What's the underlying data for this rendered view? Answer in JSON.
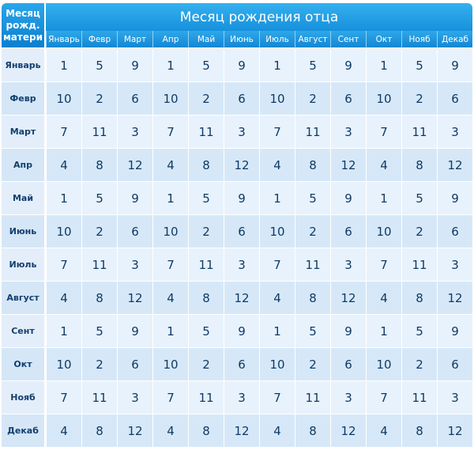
{
  "table": {
    "corner_label": [
      "Месяц",
      "рожд.",
      "матери"
    ],
    "title": "Месяц рождения отца",
    "columns": [
      "Январь",
      "Февр",
      "Март",
      "Апр",
      "Май",
      "Июнь",
      "Июль",
      "Август",
      "Сент",
      "Окт",
      "Нояб",
      "Декаб"
    ],
    "rows": [
      {
        "label": "Январь",
        "values": [
          "1",
          "5",
          "9",
          "1",
          "5",
          "9",
          "1",
          "5",
          "9",
          "1",
          "5",
          "9"
        ]
      },
      {
        "label": "Февр",
        "values": [
          "10",
          "2",
          "6",
          "10",
          "2",
          "6",
          "10",
          "2",
          "6",
          "10",
          "2",
          "6"
        ]
      },
      {
        "label": "Март",
        "values": [
          "7",
          "11",
          "3",
          "7",
          "11",
          "3",
          "7",
          "11",
          "3",
          "7",
          "11",
          "3"
        ]
      },
      {
        "label": "Апр",
        "values": [
          "4",
          "8",
          "12",
          "4",
          "8",
          "12",
          "4",
          "8",
          "12",
          "4",
          "8",
          "12"
        ]
      },
      {
        "label": "Май",
        "values": [
          "1",
          "5",
          "9",
          "1",
          "5",
          "9",
          "1",
          "5",
          "9",
          "1",
          "5",
          "9"
        ]
      },
      {
        "label": "Июнь",
        "values": [
          "10",
          "2",
          "6",
          "10",
          "2",
          "6",
          "10",
          "2",
          "6",
          "10",
          "2",
          "6"
        ]
      },
      {
        "label": "Июль",
        "values": [
          "7",
          "11",
          "3",
          "7",
          "11",
          "3",
          "7",
          "11",
          "3",
          "7",
          "11",
          "3"
        ]
      },
      {
        "label": "Август",
        "values": [
          "4",
          "8",
          "12",
          "4",
          "8",
          "12",
          "4",
          "8",
          "12",
          "4",
          "8",
          "12"
        ]
      },
      {
        "label": "Сент",
        "values": [
          "1",
          "5",
          "9",
          "1",
          "5",
          "9",
          "1",
          "5",
          "9",
          "1",
          "5",
          "9"
        ]
      },
      {
        "label": "Окт",
        "values": [
          "10",
          "2",
          "6",
          "10",
          "2",
          "6",
          "10",
          "2",
          "6",
          "10",
          "2",
          "6"
        ]
      },
      {
        "label": "Нояб",
        "values": [
          "7",
          "11",
          "3",
          "7",
          "11",
          "3",
          "7",
          "11",
          "3",
          "7",
          "11",
          "3"
        ]
      },
      {
        "label": "Декаб",
        "values": [
          "4",
          "8",
          "12",
          "4",
          "8",
          "12",
          "4",
          "8",
          "12",
          "4",
          "8",
          "12"
        ]
      }
    ]
  },
  "colors": {
    "header_blue": "#1691dc",
    "cell_light": "#e8f2fc",
    "cell_alt": "#d6e8f8",
    "text_dark": "#0f3a66"
  }
}
